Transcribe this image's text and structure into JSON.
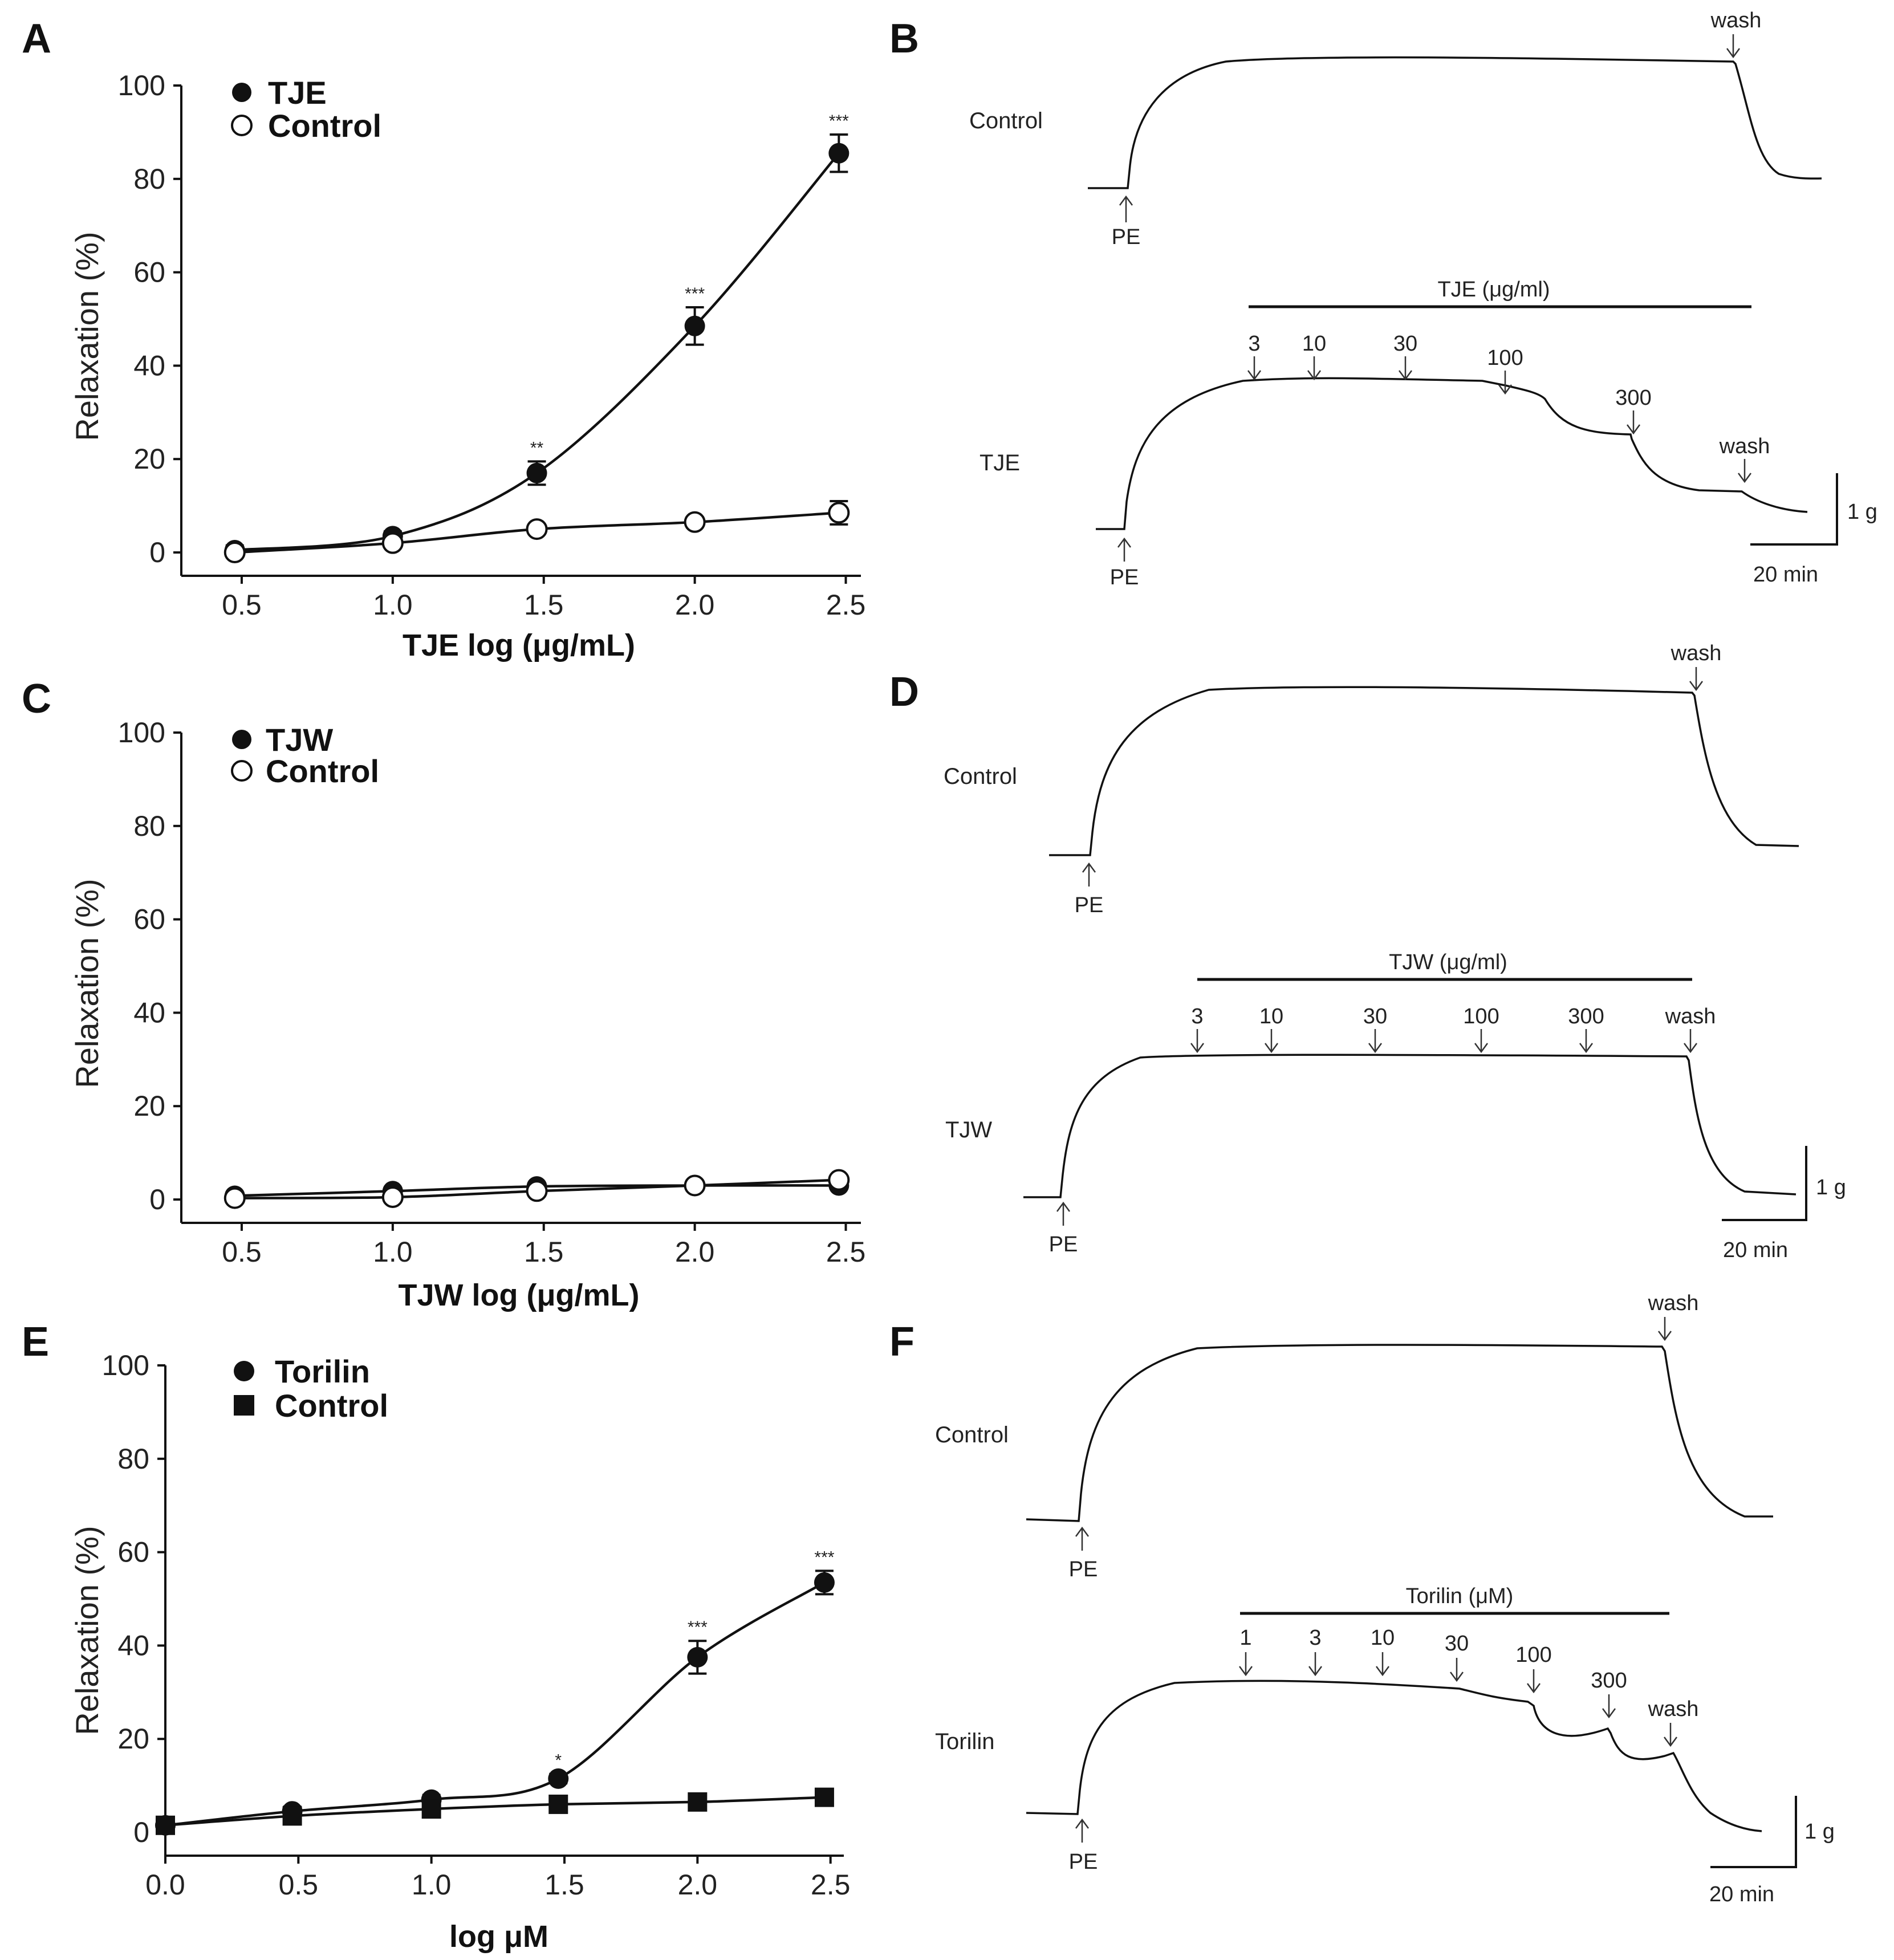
{
  "figure": {
    "panel_A": "A",
    "panel_B": "B",
    "panel_C": "C",
    "panel_D": "D",
    "panel_E": "E",
    "panel_F": "F"
  },
  "chart_data": [
    {
      "type": "scatter",
      "panel": "A",
      "xlabel": "TJE log (μg/mL)",
      "ylabel": "Relaxation (%)",
      "xlim": [
        0.3,
        2.55
      ],
      "ylim": [
        -5,
        100
      ],
      "xticks": [
        "0.5",
        "1.0",
        "1.5",
        "2.0",
        "2.5"
      ],
      "yticks": [
        "0",
        "20",
        "40",
        "60",
        "80",
        "100"
      ],
      "series": [
        {
          "name": "TJE",
          "marker": "filled-circle",
          "x": [
            0.477,
            1.0,
            1.477,
            2.0,
            2.477
          ],
          "y": [
            0.5,
            3.5,
            17,
            48.5,
            85.5
          ],
          "err": [
            1.0,
            1.0,
            2.5,
            4.0,
            4.0
          ],
          "sig": [
            "",
            "",
            "**",
            "***",
            "***"
          ]
        },
        {
          "name": "Control",
          "marker": "open-circle",
          "x": [
            0.477,
            1.0,
            1.477,
            2.0,
            2.477
          ],
          "y": [
            0,
            2,
            5,
            6.5,
            8.5
          ],
          "err": [
            0.5,
            0.5,
            0.8,
            1.0,
            2.5
          ],
          "sig": [
            "",
            "",
            "",
            "",
            ""
          ]
        }
      ]
    },
    {
      "type": "scatter",
      "panel": "C",
      "xlabel": "TJW log (μg/mL)",
      "ylabel": "Relaxation (%)",
      "xlim": [
        0.3,
        2.55
      ],
      "ylim": [
        -5,
        100
      ],
      "xticks": [
        "0.5",
        "1.0",
        "1.5",
        "2.0",
        "2.5"
      ],
      "yticks": [
        "0",
        "20",
        "40",
        "60",
        "80",
        "100"
      ],
      "series": [
        {
          "name": "TJW",
          "marker": "filled-circle",
          "x": [
            0.477,
            1.0,
            1.477,
            2.0,
            2.477
          ],
          "y": [
            0.8,
            1.8,
            2.8,
            3.0,
            3.0
          ],
          "err": [
            0.5,
            0.5,
            0.5,
            0.5,
            0.5
          ],
          "sig": [
            "",
            "",
            "",
            "",
            ""
          ]
        },
        {
          "name": "Control",
          "marker": "open-circle",
          "x": [
            0.477,
            1.0,
            1.477,
            2.0,
            2.477
          ],
          "y": [
            0.3,
            0.5,
            1.8,
            3.0,
            4.2
          ],
          "err": [
            0.5,
            0.5,
            0.5,
            0.5,
            0.5
          ],
          "sig": [
            "",
            "",
            "",
            "",
            ""
          ]
        }
      ]
    },
    {
      "type": "scatter",
      "panel": "E",
      "xlabel": "log μM",
      "ylabel": "Relaxation (%)",
      "xlim": [
        0.0,
        2.55
      ],
      "ylim": [
        -5,
        100
      ],
      "xticks": [
        "0.0",
        "0.5",
        "1.0",
        "1.5",
        "2.0",
        "2.5"
      ],
      "yticks": [
        "0",
        "20",
        "40",
        "60",
        "80",
        "100"
      ],
      "series": [
        {
          "name": "Torilin",
          "marker": "filled-circle",
          "x": [
            0.0,
            0.477,
            1.0,
            1.477,
            2.0,
            2.477
          ],
          "y": [
            1.5,
            4.5,
            7,
            11.5,
            37.5,
            53.5
          ],
          "err": [
            0.8,
            1.0,
            1.0,
            1.0,
            3.5,
            2.5
          ],
          "sig": [
            "",
            "",
            "",
            "*",
            "***",
            "***"
          ]
        },
        {
          "name": "Control",
          "marker": "filled-square",
          "x": [
            0.0,
            0.477,
            1.0,
            1.477,
            2.0,
            2.477
          ],
          "y": [
            1.5,
            3.5,
            5,
            6,
            6.5,
            7.5
          ],
          "err": [
            0.5,
            0.5,
            0.5,
            0.5,
            0.5,
            0.5
          ],
          "sig": [
            "",
            "",
            "",
            "",
            "",
            ""
          ]
        }
      ]
    }
  ],
  "traces": {
    "B": {
      "control_label": "Control",
      "treat_label": "TJE",
      "pe": "PE",
      "wash": "wash",
      "bar_label": "TJE (μg/ml)",
      "doses": [
        "3",
        "10",
        "30",
        "100",
        "300"
      ],
      "scale_y": "1 g",
      "scale_x": "20 min"
    },
    "D": {
      "control_label": "Control",
      "treat_label": "TJW",
      "pe": "PE",
      "wash": "wash",
      "bar_label": "TJW (μg/ml)",
      "doses": [
        "3",
        "10",
        "30",
        "100",
        "300"
      ],
      "scale_y": "1 g",
      "scale_x": "20 min"
    },
    "F": {
      "control_label": "Control",
      "treat_label": "Torilin",
      "pe": "PE",
      "wash": "wash",
      "bar_label": "Torilin (μM)",
      "doses": [
        "1",
        "3",
        "10",
        "30",
        "100",
        "300"
      ],
      "scale_y": "1 g",
      "scale_x": "20 min"
    }
  }
}
